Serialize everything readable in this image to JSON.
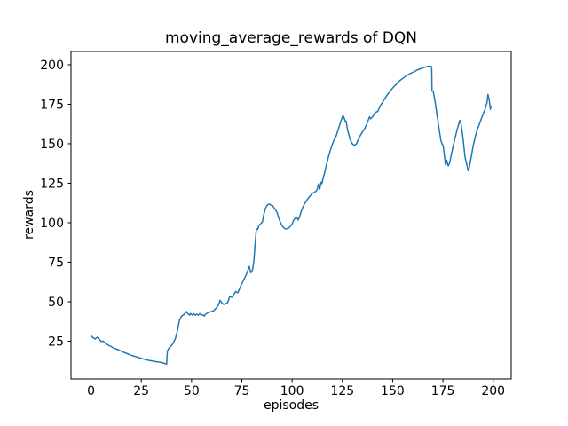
{
  "figure": {
    "background_color": "#ffffff"
  },
  "chart_data": {
    "type": "line",
    "title": "moving_average_rewards of DQN",
    "xlabel": "episodes",
    "ylabel": "rewards",
    "x_ticks": [
      0,
      25,
      50,
      75,
      100,
      125,
      150,
      175,
      200
    ],
    "y_ticks": [
      25,
      50,
      75,
      100,
      125,
      150,
      175,
      200
    ],
    "xlim": [
      -9.95,
      208.95
    ],
    "ylim": [
      1.1,
      208.4
    ],
    "grid": false,
    "legend_position": "none",
    "line_color": "#1f77b4",
    "axis_color": "#000000",
    "series": [
      {
        "name": "moving_average_rewards",
        "points": [
          [
            0,
            28.5
          ],
          [
            1,
            27.2
          ],
          [
            2,
            26.4
          ],
          [
            3,
            27.4
          ],
          [
            4,
            26.5
          ],
          [
            5,
            24.8
          ],
          [
            6,
            25.1
          ],
          [
            7,
            23.8
          ],
          [
            8,
            23.0
          ],
          [
            9,
            22.2
          ],
          [
            10,
            21.6
          ],
          [
            11,
            20.8
          ],
          [
            12,
            20.3
          ],
          [
            13,
            19.8
          ],
          [
            14,
            19.3
          ],
          [
            15,
            18.7
          ],
          [
            16,
            18.1
          ],
          [
            17,
            17.6
          ],
          [
            18,
            17.1
          ],
          [
            19,
            16.6
          ],
          [
            20,
            16.1
          ],
          [
            21,
            15.7
          ],
          [
            22,
            15.3
          ],
          [
            23,
            14.9
          ],
          [
            24,
            14.5
          ],
          [
            25,
            14.1
          ],
          [
            26,
            13.8
          ],
          [
            27,
            13.4
          ],
          [
            28,
            13.1
          ],
          [
            29,
            12.8
          ],
          [
            30,
            12.6
          ],
          [
            31,
            12.3
          ],
          [
            32,
            12.1
          ],
          [
            33,
            11.9
          ],
          [
            34,
            11.7
          ],
          [
            35,
            11.5
          ],
          [
            36,
            11.2
          ],
          [
            37,
            10.7
          ],
          [
            37.6,
            10.5
          ],
          [
            38,
            18.8
          ],
          [
            39,
            21.0
          ],
          [
            40,
            22.2
          ],
          [
            41,
            24.0
          ],
          [
            42,
            26.8
          ],
          [
            43,
            31.8
          ],
          [
            44,
            38.2
          ],
          [
            45,
            40.8
          ],
          [
            46,
            41.6
          ],
          [
            47,
            43.0
          ],
          [
            47.5,
            43.8
          ],
          [
            48,
            42.6
          ],
          [
            49,
            41.5
          ],
          [
            49.6,
            42.5
          ],
          [
            50.4,
            41.5
          ],
          [
            51.1,
            42.5
          ],
          [
            51.9,
            41.5
          ],
          [
            52.6,
            42.1
          ],
          [
            53.3,
            41.5
          ],
          [
            54.1,
            42.5
          ],
          [
            54.8,
            41.5
          ],
          [
            55.6,
            41.7
          ],
          [
            56.3,
            40.9
          ],
          [
            57,
            42.1
          ],
          [
            58,
            42.9
          ],
          [
            59,
            43.4
          ],
          [
            60,
            43.8
          ],
          [
            61,
            44.3
          ],
          [
            62,
            45.6
          ],
          [
            63,
            47.1
          ],
          [
            63.7,
            49.0
          ],
          [
            64.2,
            50.9
          ],
          [
            65,
            49.3
          ],
          [
            66,
            48.3
          ],
          [
            67,
            48.8
          ],
          [
            68,
            49.6
          ],
          [
            69,
            53.4
          ],
          [
            70,
            52.8
          ],
          [
            71,
            54.7
          ],
          [
            72,
            56.5
          ],
          [
            73,
            55.6
          ],
          [
            74,
            58.6
          ],
          [
            75,
            61.4
          ],
          [
            76,
            64.0
          ],
          [
            77,
            66.5
          ],
          [
            78,
            69.8
          ],
          [
            78.7,
            72.4
          ],
          [
            79.5,
            68.3
          ],
          [
            80.3,
            70.0
          ],
          [
            81,
            76.0
          ],
          [
            81.6,
            86.0
          ],
          [
            82.2,
            96.0
          ],
          [
            82.9,
            95.8
          ],
          [
            83.5,
            98.3
          ],
          [
            84.4,
            99.4
          ],
          [
            85.2,
            100.4
          ],
          [
            85.9,
            105.1
          ],
          [
            86.7,
            108.9
          ],
          [
            87.4,
            110.7
          ],
          [
            88.2,
            111.7
          ],
          [
            88.9,
            111.7
          ],
          [
            89.6,
            111.1
          ],
          [
            90.4,
            110.7
          ],
          [
            91.1,
            109.2
          ],
          [
            91.9,
            107.9
          ],
          [
            92.6,
            106.1
          ],
          [
            93.3,
            103.2
          ],
          [
            94.1,
            100.4
          ],
          [
            94.8,
            98.5
          ],
          [
            95.6,
            97.1
          ],
          [
            96.3,
            96.3
          ],
          [
            97,
            96.1
          ],
          [
            97.8,
            96.3
          ],
          [
            98.5,
            96.8
          ],
          [
            99.3,
            98.0
          ],
          [
            100,
            99.1
          ],
          [
            100.7,
            101.3
          ],
          [
            101.5,
            102.8
          ],
          [
            101.8,
            103.6
          ],
          [
            102.5,
            103.0
          ],
          [
            103,
            101.7
          ],
          [
            103.5,
            102.9
          ],
          [
            104,
            105.0
          ],
          [
            104.5,
            107.0
          ],
          [
            105,
            108.9
          ],
          [
            106,
            111.5
          ],
          [
            107,
            113.6
          ],
          [
            108,
            115.5
          ],
          [
            109,
            117.0
          ],
          [
            110,
            118.5
          ],
          [
            111,
            119.3
          ],
          [
            111.9,
            119.9
          ],
          [
            112.5,
            121.3
          ],
          [
            113.1,
            124.6
          ],
          [
            113.7,
            121.2
          ],
          [
            114.4,
            125.6
          ],
          [
            114.8,
            124.8
          ],
          [
            115.3,
            127.4
          ],
          [
            116,
            130.8
          ],
          [
            117,
            136.3
          ],
          [
            118,
            141.2
          ],
          [
            119,
            145.8
          ],
          [
            120,
            149.5
          ],
          [
            120.8,
            152.3
          ],
          [
            121.5,
            153.6
          ],
          [
            122,
            155.3
          ],
          [
            123,
            159.2
          ],
          [
            124,
            163.3
          ],
          [
            125,
            167.0
          ],
          [
            125.4,
            167.8
          ],
          [
            126,
            166.0
          ],
          [
            126.5,
            163.9
          ],
          [
            126.8,
            164.4
          ],
          [
            127.5,
            159.5
          ],
          [
            128,
            156.8
          ],
          [
            129,
            152.3
          ],
          [
            130,
            149.9
          ],
          [
            131,
            149.0
          ],
          [
            132,
            150.0
          ],
          [
            133,
            152.8
          ],
          [
            134,
            155.5
          ],
          [
            135,
            157.5
          ],
          [
            136,
            159.3
          ],
          [
            137,
            162.0
          ],
          [
            138,
            165.3
          ],
          [
            138.5,
            167.0
          ],
          [
            139,
            165.8
          ],
          [
            140,
            167.0
          ],
          [
            141,
            169.2
          ],
          [
            142,
            170.2
          ],
          [
            142.6,
            170.4
          ],
          [
            143,
            171.5
          ],
          [
            144,
            174.3
          ],
          [
            145,
            176.3
          ],
          [
            146,
            178.3
          ],
          [
            147,
            180.3
          ],
          [
            148,
            182.1
          ],
          [
            149,
            183.7
          ],
          [
            150,
            185.3
          ],
          [
            151,
            186.7
          ],
          [
            152,
            188.0
          ],
          [
            153,
            189.3
          ],
          [
            154,
            190.4
          ],
          [
            155,
            191.4
          ],
          [
            156,
            192.3
          ],
          [
            157,
            193.1
          ],
          [
            158,
            193.9
          ],
          [
            159,
            194.6
          ],
          [
            160,
            195.2
          ],
          [
            161,
            195.9
          ],
          [
            162,
            196.5
          ],
          [
            163,
            197.1
          ],
          [
            164,
            197.5
          ],
          [
            165,
            198.0
          ],
          [
            166,
            198.4
          ],
          [
            167,
            198.8
          ],
          [
            168,
            199.1
          ],
          [
            169,
            198.9
          ],
          [
            169.4,
            198.8
          ],
          [
            169.6,
            183.4
          ],
          [
            170.2,
            183.0
          ],
          [
            171,
            177.5
          ],
          [
            172,
            168.5
          ],
          [
            173,
            160.3
          ],
          [
            174,
            152.0
          ],
          [
            174.6,
            149.8
          ],
          [
            175.1,
            149.0
          ],
          [
            176,
            140.0
          ],
          [
            176.3,
            136.6
          ],
          [
            176.9,
            139.5
          ],
          [
            177.6,
            136.0
          ],
          [
            178.4,
            138.0
          ],
          [
            179,
            142.0
          ],
          [
            180,
            148.0
          ],
          [
            181,
            153.5
          ],
          [
            182,
            158.5
          ],
          [
            183,
            163.0
          ],
          [
            183.4,
            164.8
          ],
          [
            184,
            162.5
          ],
          [
            185,
            153.5
          ],
          [
            186,
            141.5
          ],
          [
            187,
            136.0
          ],
          [
            187.6,
            132.9
          ],
          [
            188,
            134.3
          ],
          [
            189,
            141.0
          ],
          [
            190,
            148.5
          ],
          [
            191,
            154.0
          ],
          [
            192,
            158.5
          ],
          [
            193,
            162.0
          ],
          [
            194,
            165.5
          ],
          [
            195,
            168.8
          ],
          [
            196,
            172.0
          ],
          [
            197,
            176.5
          ],
          [
            197.4,
            181.2
          ],
          [
            198,
            178.0
          ],
          [
            198.6,
            171.8
          ],
          [
            199,
            174.0
          ]
        ]
      }
    ]
  }
}
